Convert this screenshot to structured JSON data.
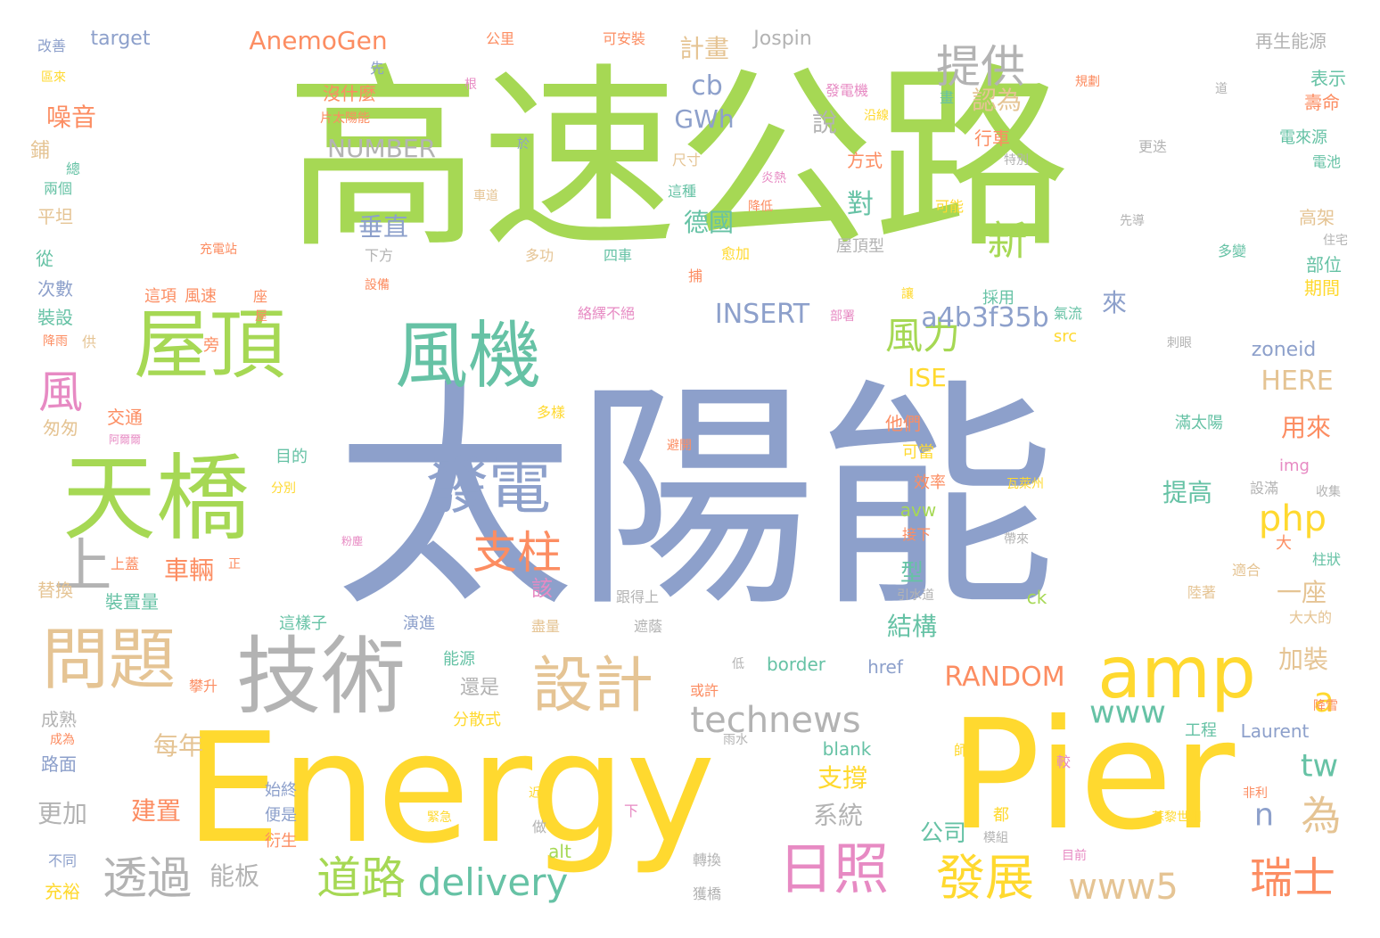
{
  "palette": {
    "blue": "#8da0cb",
    "green": "#a6d854",
    "yel": "#ffd92f",
    "tan": "#e5c494",
    "gray": "#b3b3b3",
    "teal": "#66c2a5",
    "org": "#fc8d62",
    "pink": "#e78ac3"
  },
  "words": [
    "高速公路",
    "太陽能",
    "Energy",
    "Pier",
    "天橋",
    "屋頂",
    "風機",
    "發電",
    "技術",
    "問題",
    "設計",
    "amp",
    "日照",
    "道路",
    "發展",
    "透過",
    "支柱",
    "提供",
    "新",
    "風力",
    "上",
    "風",
    "瑞士",
    "delivery",
    "technews",
    "www5",
    "為",
    "php",
    "www",
    "tw",
    "a4b3f35b",
    "INSERT",
    "RANDOM",
    "AnemoGen",
    "NUMBER",
    "cb",
    "GWh",
    "計畫",
    "車輛",
    "垂直",
    "對",
    "德國",
    "結構",
    "公司",
    "系統",
    "支撐",
    "每年",
    "更加",
    "能板",
    "建置",
    "一座",
    "用來",
    "提高",
    "加裝",
    "該",
    "型",
    "來",
    "HERE",
    "ISE",
    "zoneid",
    "認為",
    "噪音",
    "說",
    "n",
    "a",
    "表示",
    "壽命",
    "再生能源",
    "target",
    "Jospin",
    "可安裝",
    "公里",
    "改善",
    "區來",
    "鋪",
    "總",
    "兩個",
    "平坦",
    "從",
    "次數",
    "裝設",
    "降雨",
    "匆匆",
    "交通",
    "替換",
    "裝置量",
    "上蓋",
    "成熟",
    "成為",
    "路面",
    "不同",
    "充裕",
    "沒什麼",
    "片太陽能",
    "發電機",
    "沿線",
    "行車",
    "方式",
    "尺寸",
    "炎熱",
    "降低",
    "可能",
    "多功",
    "四車",
    "屋頂型",
    "住宅",
    "高架",
    "部位",
    "期間",
    "電來源",
    "電池",
    "先導",
    "多變",
    "滿太陽",
    "src",
    "img",
    "border",
    "href",
    "Laurent",
    "工程",
    "降雪",
    "獲橋",
    "轉換",
    "目前",
    "較",
    "非利",
    "蘇黎世州",
    "ck",
    "alt",
    "avw",
    "blank",
    "緊急",
    "近",
    "做",
    "下",
    "便是",
    "衍生",
    "始終",
    "這樣子",
    "演進",
    "能源",
    "分散式",
    "盡量",
    "遮蔭",
    "跟得上",
    "引水道",
    "陸著",
    "大大的",
    "柱狀",
    "適合",
    "大",
    "設滿",
    "收集",
    "瓦萊州",
    "帶來",
    "可當",
    "效率",
    "接下",
    "他們",
    "避開",
    "多樣",
    "氣流",
    "採用",
    "刺眼",
    "部署",
    "讓",
    "捕",
    "愈加",
    "這種",
    "車道",
    "下方",
    "設備",
    "這項",
    "風速",
    "座",
    "絡繹不絕",
    "旁",
    "供",
    "阿爾爾",
    "目的",
    "分別",
    "粉塵",
    "正",
    "雨水",
    "師",
    "都",
    "模組",
    "還是",
    "或許",
    "低",
    "攀升",
    "特別",
    "更迭",
    "於",
    "道",
    "規劃",
    "先",
    "根",
    "畫",
    "充電站",
    "屋"
  ]
}
